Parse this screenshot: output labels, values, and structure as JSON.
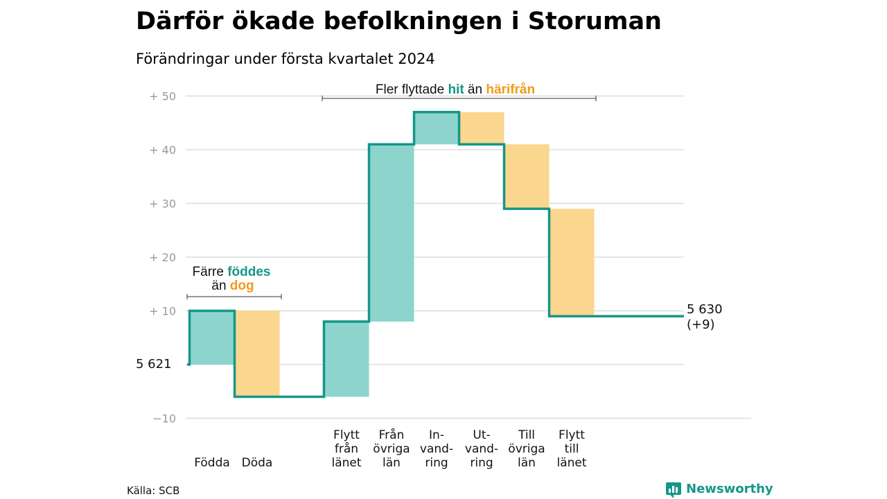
{
  "title": "Därför ökade befolkningen i Storuman",
  "subtitle": "Förändringar under första kvartalet 2024",
  "source": "Källa: SCB",
  "brand": "Newsworthy",
  "colors": {
    "increase": "#8dd5cc",
    "decrease": "#fad68e",
    "line": "#15968a",
    "accent_orange": "#ef9b1a",
    "grid": "#dddddd"
  },
  "annotations": {
    "births": {
      "line1_pre": "Färre ",
      "line1_hl": "föddes",
      "line2_pre": "än ",
      "line2_hl": "dog"
    },
    "moves": {
      "pre": "Fler flyttade ",
      "hl1": "hit",
      "mid": " än ",
      "hl2": "härifrån"
    }
  },
  "chart_data": {
    "type": "waterfall",
    "baseline_label": "5  621",
    "end_label_value": "5 630",
    "end_label_change": "(+9)",
    "ylim": [
      -10,
      50
    ],
    "yticks": [
      {
        "value": 50,
        "label": "+  50"
      },
      {
        "value": 40,
        "label": "+  40"
      },
      {
        "value": 30,
        "label": "+  30"
      },
      {
        "value": 20,
        "label": "+  20"
      },
      {
        "value": 10,
        "label": "+  10"
      },
      {
        "value": -10,
        "label": "−10"
      }
    ],
    "steps": [
      {
        "category": "Födda",
        "lines": [
          "Födda"
        ],
        "change": 10
      },
      {
        "category": "Döda",
        "lines": [
          "Döda"
        ],
        "change": -16
      },
      {
        "category": "Flytt från länet",
        "lines": [
          "Flytt",
          "från",
          "länet"
        ],
        "change": 14
      },
      {
        "category": "Från övriga län",
        "lines": [
          "Från",
          "övriga",
          "län"
        ],
        "change": 33
      },
      {
        "category": "Invandring",
        "lines": [
          "In-",
          "vand-",
          "ring"
        ],
        "change": 6
      },
      {
        "category": "Utvandring",
        "lines": [
          "Ut-",
          "vand-",
          "ring"
        ],
        "change": -6
      },
      {
        "category": "Till övriga län",
        "lines": [
          "Till",
          "övriga",
          "län"
        ],
        "change": -12
      },
      {
        "category": "Flytt till länet",
        "lines": [
          "Flytt",
          "till",
          "länet"
        ],
        "change": -20
      }
    ],
    "net_change": 9
  }
}
